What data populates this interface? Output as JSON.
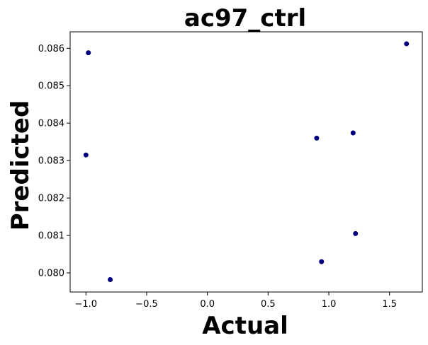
{
  "chart_data": {
    "type": "scatter",
    "title": "ac97_ctrl",
    "xlabel": "Actual",
    "ylabel": "Predicted",
    "xlim": [
      -1.13,
      1.77
    ],
    "ylim": [
      0.07949,
      0.08644
    ],
    "xticks": [
      -1.0,
      -0.5,
      0.0,
      0.5,
      1.0,
      1.5
    ],
    "xtick_labels": [
      "−1.0",
      "−0.5",
      "0.0",
      "0.5",
      "1.0",
      "1.5"
    ],
    "yticks": [
      0.08,
      0.081,
      0.082,
      0.083,
      0.084,
      0.085,
      0.086
    ],
    "ytick_labels": [
      "0.080",
      "0.081",
      "0.082",
      "0.083",
      "0.084",
      "0.085",
      "0.086"
    ],
    "grid": false,
    "marker_color": "#00007f",
    "points": [
      {
        "x": -0.98,
        "y": 0.08588
      },
      {
        "x": -1.0,
        "y": 0.08315
      },
      {
        "x": -0.8,
        "y": 0.07982
      },
      {
        "x": 0.9,
        "y": 0.0836
      },
      {
        "x": 1.2,
        "y": 0.08374
      },
      {
        "x": 1.22,
        "y": 0.08105
      },
      {
        "x": 0.94,
        "y": 0.0803
      },
      {
        "x": 1.64,
        "y": 0.08612
      }
    ]
  }
}
